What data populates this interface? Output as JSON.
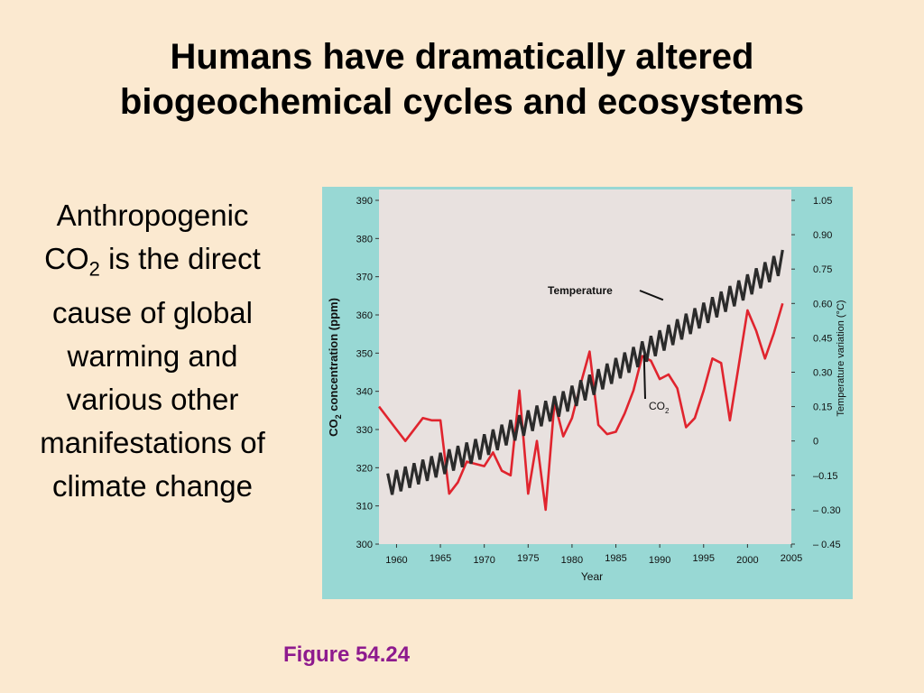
{
  "slide": {
    "title_line1": "Humans have dramatically altered",
    "title_line2": "biogeochemical cycles and ecosystems",
    "body_prefix": "Anthropogenic ",
    "body_co2": "CO",
    "body_sub": "2",
    "body_suffix": " is the direct cause of global warming and various other manifestations of climate change",
    "caption": "Figure 54.24",
    "caption_color": "#8e1a8e",
    "background_color": "#fbe9d0"
  },
  "chart_data": {
    "type": "line",
    "xlabel": "Year",
    "ylabel_left_main": "CO",
    "ylabel_left_sub": "2",
    "ylabel_left_rest": " concentration (ppm)",
    "ylabel_right": "Temperature variation (°C)",
    "xlim": [
      1958,
      2005
    ],
    "ylim_left": [
      300,
      390
    ],
    "ylim_right": [
      -0.45,
      1.05
    ],
    "x_ticks": [
      1960,
      1965,
      1970,
      1975,
      1980,
      1985,
      1990,
      1995,
      2000,
      2005
    ],
    "y_ticks_left": [
      300,
      310,
      320,
      330,
      340,
      350,
      360,
      370,
      380,
      390
    ],
    "y_ticks_right": [
      {
        "value": 1.05,
        "label": "1.05"
      },
      {
        "value": 0.9,
        "label": "0.90"
      },
      {
        "value": 0.75,
        "label": "0.75"
      },
      {
        "value": 0.6,
        "label": "0.60"
      },
      {
        "value": 0.45,
        "label": "0.45"
      },
      {
        "value": 0.3,
        "label": "0.30"
      },
      {
        "value": 0.15,
        "label": "0.15"
      },
      {
        "value": 0,
        "label": "0"
      },
      {
        "value": -0.15,
        "label": "–0.15"
      },
      {
        "value": -0.3,
        "label": "– 0.30"
      },
      {
        "value": -0.45,
        "label": "– 0.45"
      }
    ],
    "grid": false,
    "plot_background": "#e8e1df",
    "panel_background": "#98d8d4",
    "series": [
      {
        "name": "Temperature",
        "axis": "right",
        "color": "#e0242e",
        "x": [
          1958,
          1960,
          1961,
          1963,
          1964,
          1965,
          1966,
          1967,
          1968,
          1969,
          1970,
          1971,
          1972,
          1973,
          1974,
          1975,
          1976,
          1977,
          1978,
          1979,
          1980,
          1981,
          1982,
          1983,
          1984,
          1985,
          1986,
          1987,
          1988,
          1989,
          1990,
          1991,
          1992,
          1993,
          1994,
          1995,
          1996,
          1997,
          1998,
          1999,
          2000,
          2001,
          2002,
          2003,
          2004
        ],
        "y": [
          0.15,
          0.05,
          0,
          0.1,
          0.09,
          0.09,
          -0.23,
          -0.18,
          -0.09,
          -0.1,
          -0.11,
          -0.05,
          -0.13,
          -0.15,
          0.22,
          -0.23,
          0,
          -0.3,
          0.17,
          0.02,
          0.1,
          0.25,
          0.39,
          0.07,
          0.03,
          0.04,
          0.12,
          0.22,
          0.37,
          0.35,
          0.27,
          0.29,
          0.23,
          0.06,
          0.1,
          0.22,
          0.36,
          0.34,
          0.09,
          0.33,
          0.57,
          0.48,
          0.36,
          0.47,
          0.6
        ]
      },
      {
        "name": "CO2",
        "axis": "left",
        "color": "#2b2b2b",
        "x": [
          1959,
          1969,
          1979,
          1989,
          1999,
          2004
        ],
        "y": [
          315.5,
          324.5,
          337,
          351.5,
          366,
          374
        ],
        "seasonal_amplitude_ppm": 3
      }
    ],
    "annotations": [
      {
        "label": "Temperature",
        "x": 1991,
        "y_right": 0.6
      },
      {
        "label_main": "CO",
        "label_sub": "2",
        "x": 1988,
        "y_left": 350
      }
    ]
  }
}
